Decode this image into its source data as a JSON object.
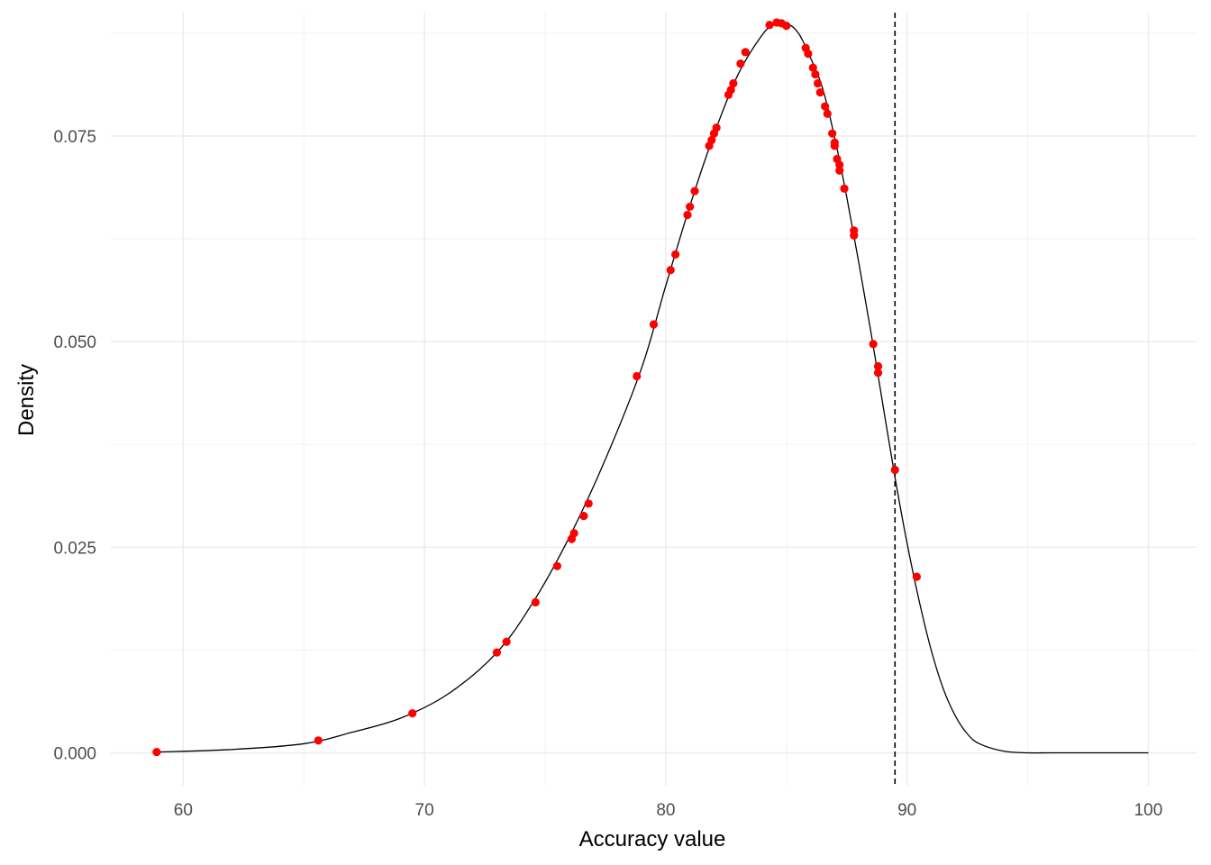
{
  "chart_data": {
    "type": "line",
    "xlabel": "Accuracy value",
    "ylabel": "Density",
    "xlim": [
      57,
      102
    ],
    "ylim": [
      -0.004,
      0.09
    ],
    "x_ticks": [
      60,
      70,
      80,
      90,
      100
    ],
    "x_tick_labels": [
      "60",
      "70",
      "80",
      "90",
      "100"
    ],
    "y_ticks": [
      0.0,
      0.025,
      0.05,
      0.075
    ],
    "y_tick_labels": [
      "0.000",
      "0.025",
      "0.050",
      "0.075"
    ],
    "grid": true,
    "reference_line": {
      "x": 89.5,
      "style": "dashed",
      "color": "#000000"
    },
    "series": [
      {
        "kind": "density-curve",
        "color": "#000000",
        "points": [
          [
            59,
            0.0001
          ],
          [
            62,
            0.0004
          ],
          [
            65,
            0.0011
          ],
          [
            67,
            0.0025
          ],
          [
            69,
            0.0042
          ],
          [
            71,
            0.0072
          ],
          [
            73,
            0.0122
          ],
          [
            74.5,
            0.0183
          ],
          [
            76,
            0.0262
          ],
          [
            77.5,
            0.0357
          ],
          [
            79,
            0.0468
          ],
          [
            80,
            0.0568
          ],
          [
            81,
            0.0665
          ],
          [
            82,
            0.0752
          ],
          [
            83,
            0.0825
          ],
          [
            84,
            0.0873
          ],
          [
            84.5,
            0.0885
          ],
          [
            85,
            0.0887
          ],
          [
            85.5,
            0.0875
          ],
          [
            86,
            0.0845
          ],
          [
            86.5,
            0.0808
          ],
          [
            87,
            0.0748
          ],
          [
            87.5,
            0.0676
          ],
          [
            88,
            0.0596
          ],
          [
            88.5,
            0.0512
          ],
          [
            89,
            0.0423
          ],
          [
            89.5,
            0.0335
          ],
          [
            90,
            0.0255
          ],
          [
            90.5,
            0.0185
          ],
          [
            91,
            0.0125
          ],
          [
            91.5,
            0.0078
          ],
          [
            92,
            0.0045
          ],
          [
            92.5,
            0.0023
          ],
          [
            93,
            0.0011
          ],
          [
            94,
            0.0002
          ],
          [
            95,
            0.0
          ],
          [
            96,
            0.0
          ],
          [
            98,
            0.0
          ],
          [
            100,
            0.0
          ]
        ]
      },
      {
        "kind": "points",
        "color": "#ff0000",
        "points": [
          [
            58.9,
            0.0001
          ],
          [
            65.6,
            0.0015
          ],
          [
            69.5,
            0.0048
          ],
          [
            73.0,
            0.0122
          ],
          [
            73.4,
            0.0135
          ],
          [
            74.6,
            0.0183
          ],
          [
            75.5,
            0.0227
          ],
          [
            76.1,
            0.026
          ],
          [
            76.2,
            0.0267
          ],
          [
            76.6,
            0.0288
          ],
          [
            76.8,
            0.0303
          ],
          [
            78.8,
            0.0458
          ],
          [
            79.5,
            0.0521
          ],
          [
            80.2,
            0.0587
          ],
          [
            80.4,
            0.0606
          ],
          [
            80.9,
            0.0654
          ],
          [
            81.0,
            0.0664
          ],
          [
            81.2,
            0.0683
          ],
          [
            81.8,
            0.0738
          ],
          [
            81.9,
            0.0745
          ],
          [
            82.0,
            0.0753
          ],
          [
            82.1,
            0.076
          ],
          [
            82.6,
            0.08
          ],
          [
            82.7,
            0.0806
          ],
          [
            82.8,
            0.0814
          ],
          [
            83.1,
            0.0838
          ],
          [
            83.3,
            0.0852
          ],
          [
            84.3,
            0.0885
          ],
          [
            84.6,
            0.0888
          ],
          [
            84.8,
            0.0887
          ],
          [
            85.0,
            0.0884
          ],
          [
            85.8,
            0.0857
          ],
          [
            85.9,
            0.085
          ],
          [
            86.1,
            0.0833
          ],
          [
            86.2,
            0.0825
          ],
          [
            86.3,
            0.0814
          ],
          [
            86.4,
            0.0803
          ],
          [
            86.6,
            0.0786
          ],
          [
            86.7,
            0.0777
          ],
          [
            86.9,
            0.0753
          ],
          [
            87.0,
            0.0742
          ],
          [
            87.0,
            0.0738
          ],
          [
            87.1,
            0.0722
          ],
          [
            87.2,
            0.0715
          ],
          [
            87.2,
            0.0708
          ],
          [
            87.4,
            0.0686
          ],
          [
            87.8,
            0.0635
          ],
          [
            87.8,
            0.0629
          ],
          [
            88.6,
            0.0497
          ],
          [
            88.8,
            0.047
          ],
          [
            88.8,
            0.0462
          ],
          [
            89.5,
            0.0344
          ],
          [
            90.4,
            0.0214
          ]
        ]
      }
    ]
  }
}
